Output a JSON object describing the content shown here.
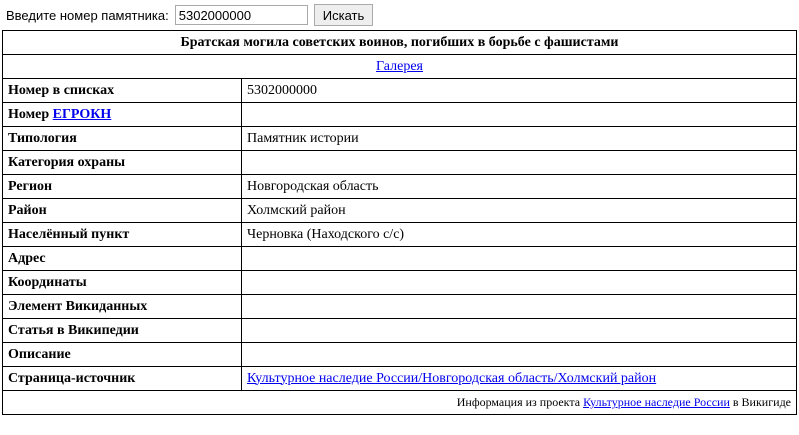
{
  "search": {
    "label": "Введите номер памятника:",
    "value": "5302000000",
    "button": "Искать"
  },
  "title": "Братская могила советских воинов, погибших в борьбе с фашистами",
  "gallery": "Галерея",
  "rows": [
    {
      "label": "Номер в списках",
      "value": "5302000000"
    },
    {
      "label": "Номер",
      "link": "ЕГРОКН"
    },
    {
      "label": "Типология",
      "value": "Памятник истории"
    },
    {
      "label": "Категория охраны"
    },
    {
      "label": "Регион",
      "value": "Новгородская область"
    },
    {
      "label": "Район",
      "value": "Холмский район"
    },
    {
      "label": "Населённый пункт",
      "value": "Черновка (Находского с/с)"
    },
    {
      "label": "Адрес"
    },
    {
      "label": "Координаты"
    },
    {
      "label": "Элемент Викиданных"
    },
    {
      "label": "Статья в Википедии"
    },
    {
      "label": "Описание"
    },
    {
      "label": "Страница-источник",
      "value_link": "Культурное наследие России/Новгородская область/Холмский район"
    }
  ],
  "footer": {
    "prefix": "Информация из проекта",
    "link": "Культурное наследие России",
    "suffix": "в Викигиде"
  }
}
